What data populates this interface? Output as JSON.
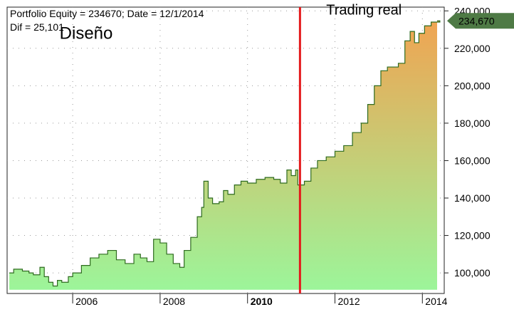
{
  "header": {
    "line1": "Portfolio Equity = 234670; Date = 12/1/2014",
    "line2": "Dif = 25,101"
  },
  "chart_data": {
    "type": "area",
    "title": "",
    "xlabel": "",
    "ylabel": "",
    "xlim": [
      2004.5,
      2014.5
    ],
    "ylim": [
      89000,
      242000
    ],
    "y_ticks": [
      100000,
      120000,
      140000,
      160000,
      180000,
      200000,
      220000,
      240000
    ],
    "y_tick_labels": [
      "100,000",
      "120,000",
      "140,000",
      "160,000",
      "180,000",
      "200,000",
      "220,000",
      "240,000"
    ],
    "x_ticks": [
      2006,
      2008,
      2010,
      2012,
      2014
    ],
    "x_tick_labels": [
      "2006",
      "2008",
      "2010",
      "2012",
      "2014"
    ],
    "bold_x_tick": "2010",
    "grid": true,
    "split_line": {
      "x": 2011.2,
      "color": "#e41a1c"
    },
    "annotations": [
      {
        "text": "Diseño",
        "x": 2005.7,
        "y": 225000
      },
      {
        "text": "Trading real",
        "x": 2011.8,
        "y": 238000
      }
    ],
    "current_value": {
      "label": "234,670",
      "value": 234670
    },
    "colors": {
      "line": "#2e6b1f",
      "fill_bottom": "#9cf59a",
      "fill_top": "#f0a452",
      "marker": "#4e7a45",
      "split": "#e41a1c"
    },
    "series": [
      {
        "name": "",
        "points": [
          [
            2004.55,
            100000
          ],
          [
            2004.65,
            102000
          ],
          [
            2004.85,
            101000
          ],
          [
            2005.0,
            100000
          ],
          [
            2005.1,
            99000
          ],
          [
            2005.25,
            103000
          ],
          [
            2005.35,
            98000
          ],
          [
            2005.45,
            95000
          ],
          [
            2005.55,
            93000
          ],
          [
            2005.65,
            96000
          ],
          [
            2005.75,
            95000
          ],
          [
            2005.9,
            98000
          ],
          [
            2006.0,
            100000
          ],
          [
            2006.2,
            104000
          ],
          [
            2006.4,
            108000
          ],
          [
            2006.6,
            110000
          ],
          [
            2006.8,
            112000
          ],
          [
            2007.0,
            107000
          ],
          [
            2007.2,
            105000
          ],
          [
            2007.4,
            110000
          ],
          [
            2007.55,
            108000
          ],
          [
            2007.7,
            106000
          ],
          [
            2007.85,
            118000
          ],
          [
            2008.0,
            116000
          ],
          [
            2008.15,
            110000
          ],
          [
            2008.3,
            105000
          ],
          [
            2008.45,
            103000
          ],
          [
            2008.55,
            112000
          ],
          [
            2008.7,
            119000
          ],
          [
            2008.85,
            130000
          ],
          [
            2008.95,
            135000
          ],
          [
            2009.0,
            149000
          ],
          [
            2009.1,
            140000
          ],
          [
            2009.2,
            137000
          ],
          [
            2009.35,
            138000
          ],
          [
            2009.45,
            144000
          ],
          [
            2009.55,
            142000
          ],
          [
            2009.7,
            147000
          ],
          [
            2009.85,
            149000
          ],
          [
            2010.0,
            148000
          ],
          [
            2010.2,
            150000
          ],
          [
            2010.4,
            151000
          ],
          [
            2010.6,
            150000
          ],
          [
            2010.75,
            148000
          ],
          [
            2010.9,
            155000
          ],
          [
            2011.0,
            152000
          ],
          [
            2011.1,
            155000
          ],
          [
            2011.15,
            147000
          ],
          [
            2011.3,
            149000
          ],
          [
            2011.45,
            156000
          ],
          [
            2011.6,
            160000
          ],
          [
            2011.8,
            162000
          ],
          [
            2012.0,
            165000
          ],
          [
            2012.2,
            168000
          ],
          [
            2012.4,
            175000
          ],
          [
            2012.6,
            180000
          ],
          [
            2012.75,
            190000
          ],
          [
            2012.9,
            200000
          ],
          [
            2013.05,
            208000
          ],
          [
            2013.2,
            210000
          ],
          [
            2013.45,
            212000
          ],
          [
            2013.6,
            224000
          ],
          [
            2013.72,
            229000
          ],
          [
            2013.82,
            223000
          ],
          [
            2013.92,
            228000
          ],
          [
            2014.05,
            232000
          ],
          [
            2014.2,
            234000
          ],
          [
            2014.4,
            234670
          ]
        ]
      }
    ]
  }
}
